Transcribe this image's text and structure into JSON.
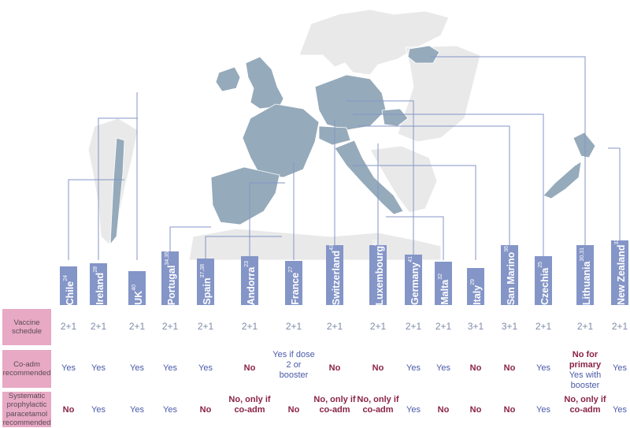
{
  "colors": {
    "bar": "#8495c7",
    "yes": "#4a5aa8",
    "no": "#8a2346",
    "rowhead": "#e7a9c4",
    "schedule": "#7d8aa8",
    "map_dark": "#95aabb",
    "map_light": "#e6e6e6"
  },
  "rows": {
    "schedule": "Vaccine schedule",
    "coadm": "Co-adm recommended",
    "paracetamol": "Systematic prophylactic paracetamol recommended"
  },
  "countries": [
    {
      "name": "Chile",
      "ref": "24",
      "level": 0.64,
      "schedule": "2+1",
      "coadm": "Yes",
      "coadm_pos": true,
      "para": "No",
      "para_pos": false
    },
    {
      "name": "Ireland",
      "ref": "28",
      "level": 0.7,
      "schedule": "2+1",
      "coadm": "Yes",
      "coadm_pos": true,
      "para": "Yes",
      "para_pos": true
    },
    {
      "name": "UK",
      "ref": "40",
      "level": 0.57,
      "schedule": "2+1",
      "coadm": "Yes",
      "coadm_pos": true,
      "para": "Yes",
      "para_pos": true
    },
    {
      "name": "Portugal",
      "ref": "34,35",
      "level": 0.9,
      "schedule": "2+1",
      "coadm": "Yes",
      "coadm_pos": true,
      "para": "Yes",
      "para_pos": true
    },
    {
      "name": "Spain",
      "ref": "37,38",
      "level": 0.78,
      "schedule": "2+1",
      "coadm": "Yes",
      "coadm_pos": true,
      "para": "No",
      "para_pos": false
    },
    {
      "name": "Andorra",
      "ref": "23",
      "level": 0.82,
      "schedule": "2+1",
      "coadm": "No",
      "coadm_pos": false,
      "para": "No, only if co-adm",
      "para_pos": false
    },
    {
      "name": "France",
      "ref": "27",
      "level": 0.74,
      "schedule": "2+1",
      "coadm": "Yes if dose 2 or booster",
      "coadm_pos": true,
      "para": "No",
      "para_pos": false
    },
    {
      "name": "Switzerland",
      "ref": "43",
      "level": 1.0,
      "schedule": "2+1",
      "coadm": "No",
      "coadm_pos": false,
      "para": "No, only if co-adm",
      "para_pos": false
    },
    {
      "name": "Luxembourg",
      "ref": "42",
      "level": 1.0,
      "schedule": "2+1",
      "coadm": "No",
      "coadm_pos": false,
      "para": "No, only if co-adm",
      "para_pos": false
    },
    {
      "name": "Germany",
      "ref": "41",
      "level": 0.84,
      "schedule": "2+1",
      "coadm": "Yes",
      "coadm_pos": true,
      "para": "Yes",
      "para_pos": true
    },
    {
      "name": "Malta",
      "ref": "32",
      "level": 0.72,
      "schedule": "2+1",
      "coadm": "Yes",
      "coadm_pos": true,
      "para": "No",
      "para_pos": false
    },
    {
      "name": "Italy",
      "ref": "29",
      "level": 0.62,
      "schedule": "3+1",
      "coadm": "No",
      "coadm_pos": false,
      "para": "No",
      "para_pos": false
    },
    {
      "name": "San Marino",
      "ref": "36",
      "level": 1.0,
      "schedule": "3+1",
      "coadm": "No",
      "coadm_pos": false,
      "para": "No",
      "para_pos": false
    },
    {
      "name": "Czechia",
      "ref": "25",
      "level": 0.82,
      "schedule": "2+1",
      "coadm": "Yes",
      "coadm_pos": true,
      "para": "Yes",
      "para_pos": true
    },
    {
      "name": "Lithuania",
      "ref": "30,31",
      "level": 1.0,
      "schedule": "2+1",
      "coadm": "No for primary Yes with booster",
      "coadm_pos": false,
      "para": "No, only if co-adm",
      "para_pos": false
    },
    {
      "name": "New Zealand",
      "ref": "33,34",
      "level": 1.08,
      "schedule": "2+1",
      "coadm": "Yes",
      "coadm_pos": true,
      "para": "Yes",
      "para_pos": true
    }
  ]
}
